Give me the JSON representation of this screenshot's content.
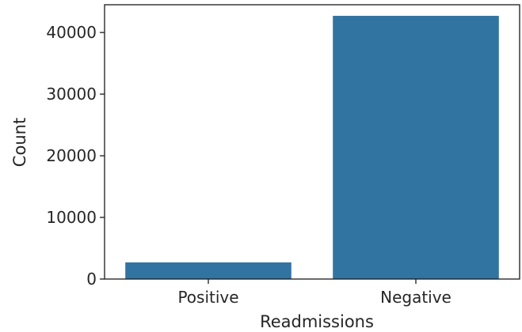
{
  "chart_data": {
    "type": "bar",
    "title": "",
    "xlabel": "Readmissions",
    "ylabel": "Count",
    "categories": [
      "Positive",
      "Negative"
    ],
    "values": [
      2700,
      42700
    ],
    "ylim": [
      0,
      44500
    ],
    "yticks": [
      {
        "value": 0,
        "label": "0"
      },
      {
        "value": 10000,
        "label": "10000"
      },
      {
        "value": 20000,
        "label": "20000"
      },
      {
        "value": 30000,
        "label": "30000"
      },
      {
        "value": 40000,
        "label": "40000"
      }
    ],
    "bar_color": "#3274a1",
    "grid": false,
    "legend": "none"
  }
}
